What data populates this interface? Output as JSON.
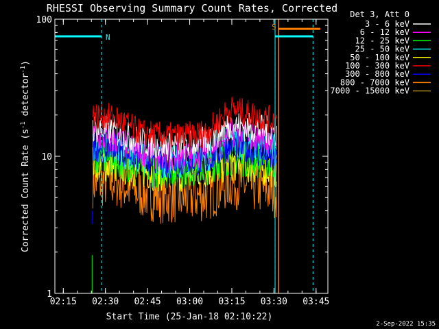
{
  "chart_data": {
    "type": "line",
    "title": "RHESSI Observing Summary Count Rates, Corrected",
    "xlabel": "Start Time (25-Jan-18 02:10:22)",
    "ylabel_main": "Corrected Count Rate (s",
    "ylabel_sup1": "-1",
    "ylabel_mid": " detector",
    "ylabel_sup2": "-1",
    "ylabel_end": ")",
    "yscale": "log",
    "ylim": [
      1,
      100
    ],
    "xlim_minutes": [
      2.0,
      99.2
    ],
    "x_ticks": [
      {
        "label": "02:15",
        "minutes": 5
      },
      {
        "label": "02:30",
        "minutes": 20
      },
      {
        "label": "02:45",
        "minutes": 35
      },
      {
        "label": "03:00",
        "minutes": 50
      },
      {
        "label": "03:15",
        "minutes": 65
      },
      {
        "label": "03:30",
        "minutes": 80
      },
      {
        "label": "03:45",
        "minutes": 95
      }
    ],
    "y_ticks": [
      {
        "label": "1",
        "value": 1
      },
      {
        "label": "10",
        "value": 10
      },
      {
        "label": "100",
        "value": 100
      }
    ],
    "legend_header": "Det 3, Att 0",
    "series": [
      {
        "name": "3 - 6 keV",
        "color": "#ffffff",
        "profile": [
          16,
          15,
          13,
          12,
          12,
          13,
          17,
          16,
          15
        ],
        "jitter": 0.16
      },
      {
        "name": "6 - 12 keV",
        "color": "#ff00ff",
        "profile": [
          14,
          13,
          11,
          10,
          10,
          11,
          15,
          14,
          13
        ],
        "jitter": 0.16
      },
      {
        "name": "12 - 25 keV",
        "color": "#00ff00",
        "profile": [
          10,
          9.5,
          8.5,
          8,
          8,
          8.5,
          10,
          9.5,
          9
        ],
        "jitter": 0.2
      },
      {
        "name": "25 - 50 keV",
        "color": "#00ffff",
        "profile": [
          12,
          11,
          10,
          9,
          9,
          10,
          13,
          12,
          11
        ],
        "jitter": 0.18
      },
      {
        "name": "50 - 100 keV",
        "color": "#ffff00",
        "profile": [
          9,
          8.5,
          8,
          7.5,
          7.5,
          8,
          9,
          8.5,
          8
        ],
        "jitter": 0.2
      },
      {
        "name": "100 - 300 keV",
        "color": "#ff0000",
        "profile": [
          20,
          19,
          15,
          14,
          14,
          15,
          22,
          20,
          18
        ],
        "jitter": 0.15
      },
      {
        "name": "300 - 800 keV",
        "color": "#0000ff",
        "profile": [
          12,
          11.5,
          10,
          9,
          9,
          9.5,
          12,
          11,
          9
        ],
        "jitter": 0.17
      },
      {
        "name": "800 - 7000 keV",
        "color": "#ff8000",
        "profile": [
          6.5,
          6.5,
          5.5,
          5,
          5,
          5.2,
          6.5,
          6,
          5.5
        ],
        "jitter": 0.28
      },
      {
        "name": "7000 - 15000 keV",
        "color": "#a08020",
        "profile": [],
        "jitter": 0
      }
    ],
    "data_range_minutes": [
      15.5,
      81.0
    ],
    "saa_flag": {
      "label": "S",
      "start_minutes": 81.5,
      "end_minutes": 96.5,
      "value": 85
    },
    "night_flag": {
      "label": "N",
      "start_minutes": 2.0,
      "end_minutes": 18.6,
      "value": 75
    },
    "flag_lines_minutes": [
      18.6,
      80.4,
      93.9
    ],
    "orange_vertical_minutes": 81.6,
    "cyan_bars": [
      {
        "start_minutes": 2.0,
        "end_minutes": 18.6,
        "value": 75
      },
      {
        "start_minutes": 80.4,
        "end_minutes": 93.9,
        "value": 75
      }
    ],
    "footer_date": "2-Sep-2022 15:35"
  }
}
